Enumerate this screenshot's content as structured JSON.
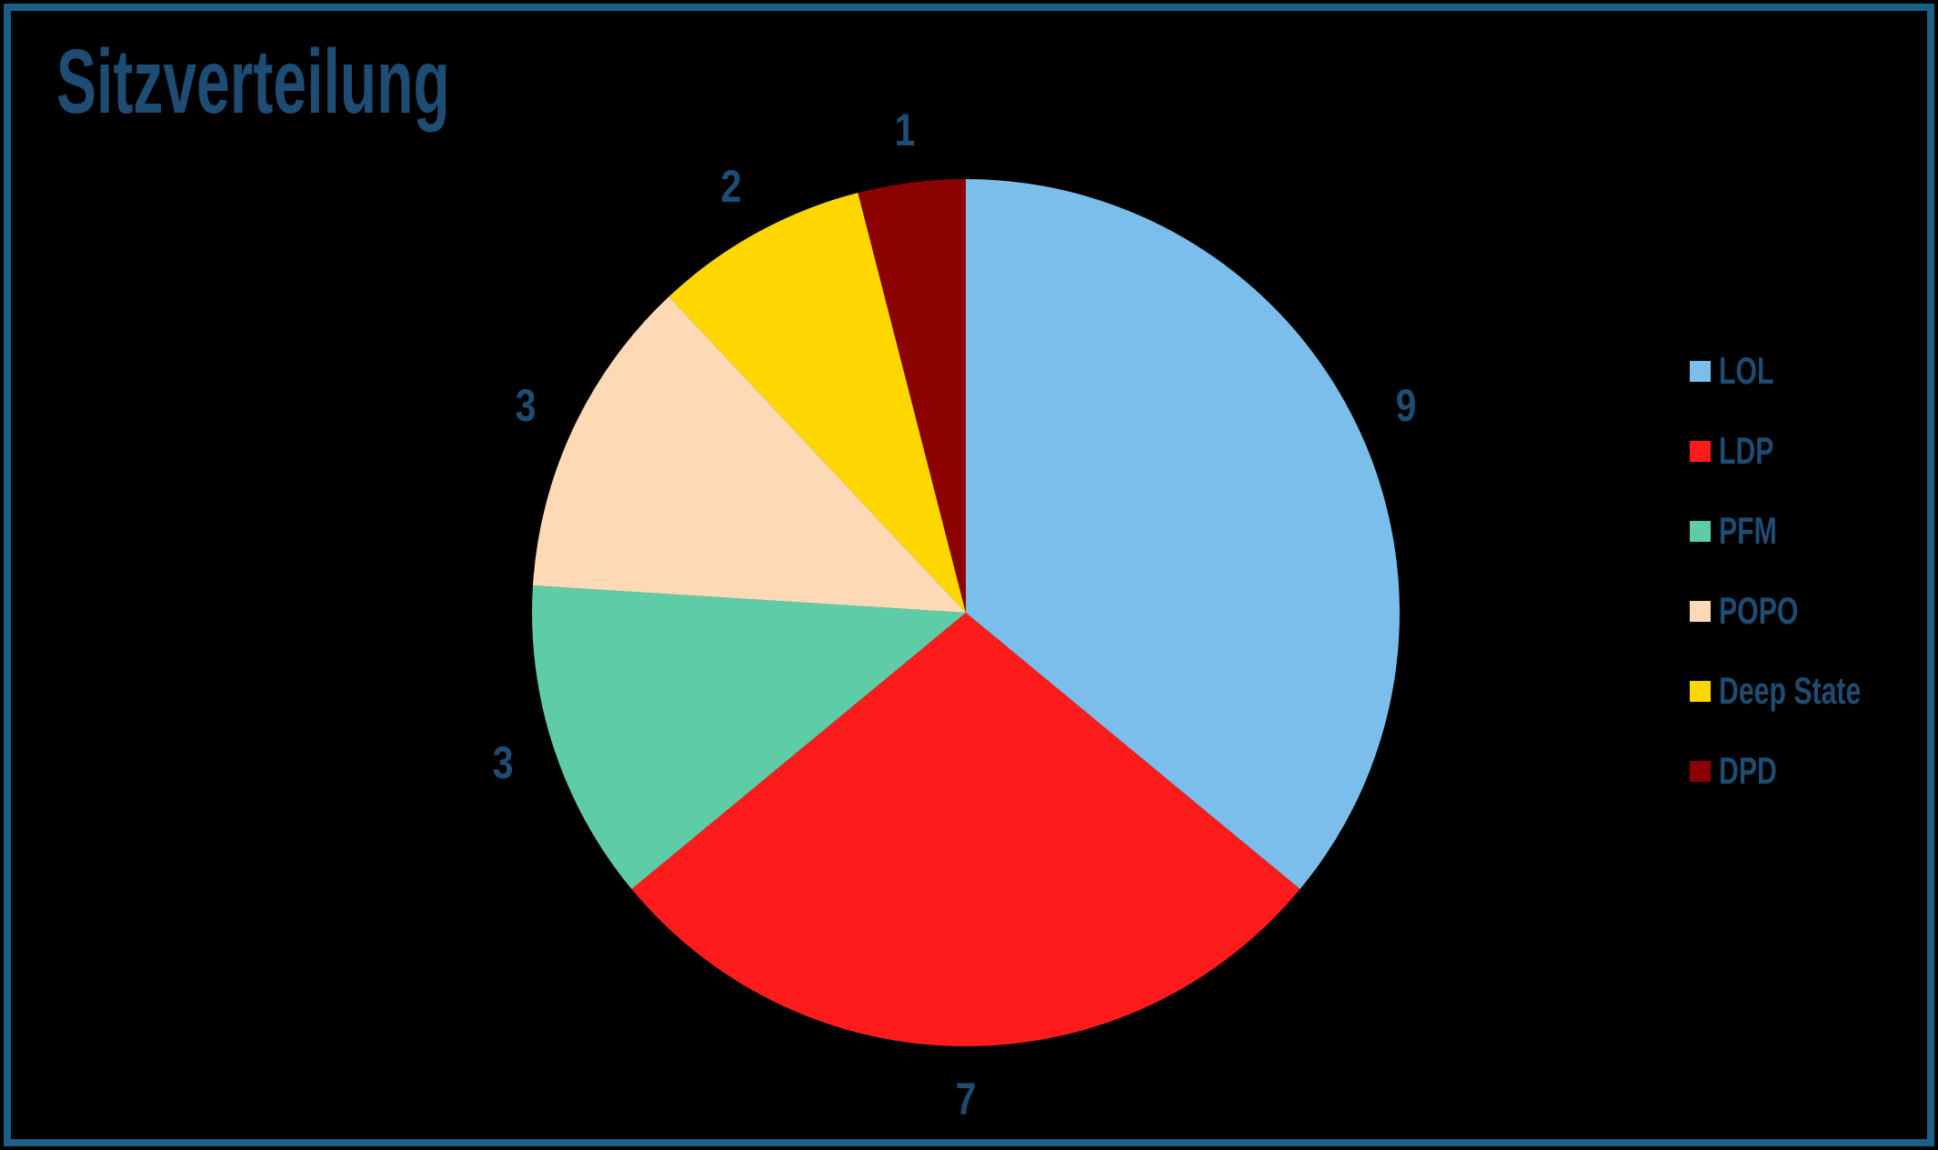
{
  "title": "Sitzverteilung",
  "style": {
    "background": "#000000",
    "frame_border_color": "#1A5F86",
    "text_color": "#1E4C72"
  },
  "chart_data": {
    "type": "pie",
    "title": "Sitzverteilung",
    "categories": [
      "LOL",
      "LDP",
      "PFM",
      "POPO",
      "Deep State",
      "DPD"
    ],
    "values": [
      9,
      7,
      3,
      3,
      2,
      1
    ],
    "total": 25,
    "data_labels": [
      "9",
      "7",
      "3",
      "3",
      "2",
      "1"
    ],
    "colors": [
      "#7CBEEB",
      "#FE1B1B",
      "#5ECCA6",
      "#FDD9B5",
      "#FFD700",
      "#8B0000"
    ],
    "start_angle_deg": 0,
    "direction": "clockwise",
    "legend_position": "right",
    "legend": [
      {
        "label": "LOL",
        "color": "#7CBEEB"
      },
      {
        "label": "LDP",
        "color": "#FE1B1B"
      },
      {
        "label": "PFM",
        "color": "#5ECCA6"
      },
      {
        "label": "POPO",
        "color": "#FDD9B5"
      },
      {
        "label": "Deep State",
        "color": "#FFD700"
      },
      {
        "label": "DPD",
        "color": "#8B0000"
      }
    ]
  }
}
